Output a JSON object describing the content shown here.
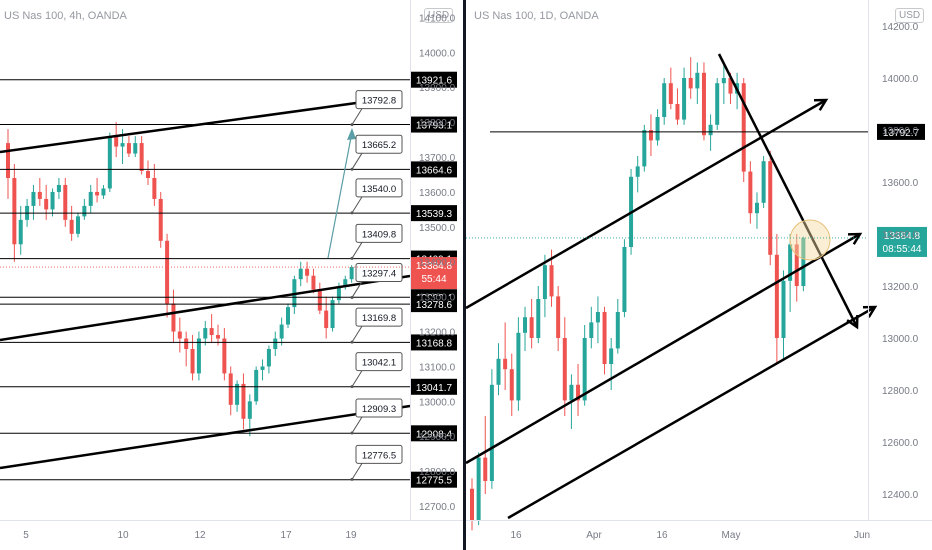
{
  "left": {
    "title": "US Nas 100, 4h, OANDA",
    "currency": "USD",
    "yticks": [
      12700.0,
      12800.0,
      12900.0,
      13000.0,
      13100.0,
      13200.0,
      13300.0,
      13400.0,
      13500.0,
      13600.0,
      13700.0,
      13800.0,
      13900.0,
      14000.0,
      14100.0
    ],
    "xticks": [
      "5",
      "10",
      "12",
      "17",
      "19"
    ],
    "hlines": [
      "13921.6",
      "13793.1",
      "13664.6",
      "13539.3",
      "13409.1",
      "13298.4",
      "13278.6",
      "13168.8",
      "13041.7",
      "12908.4",
      "12775.5"
    ],
    "notes": [
      "13792.8",
      "13665.2",
      "13540.0",
      "13409.8",
      "13297.4",
      "13169.8",
      "13042.1",
      "12909.3",
      "12776.5"
    ],
    "price": "13384.8",
    "countdown": "55:44",
    "colors": {
      "up": "#26a69a",
      "down": "#ef5350",
      "price_tag": "#ef5350"
    }
  },
  "right": {
    "title": "US Nas 100, 1D, OANDA",
    "currency": "USD",
    "yticks": [
      12400.0,
      12600.0,
      12800.0,
      13000.0,
      13200.0,
      13400.0,
      13600.0,
      13800.0,
      14000.0,
      14200.0
    ],
    "xticks": [
      "16",
      "Apr",
      "16",
      "May",
      "Jun"
    ],
    "hline": "13792.7",
    "price": "13384.8",
    "countdown": "08:55:44",
    "colors": {
      "up": "#26a69a",
      "down": "#ef5350",
      "price_tag": "#26a69a"
    }
  },
  "chart_data": [
    {
      "type": "candlestick",
      "title": "US Nas 100, 4h, OANDA",
      "ylim": [
        12660,
        14150
      ],
      "xticks": [
        "5",
        "10",
        "12",
        "17",
        "19"
      ],
      "candles_ohlc": [
        [
          13740,
          13780,
          13580,
          13640
        ],
        [
          13640,
          13680,
          13400,
          13450
        ],
        [
          13450,
          13560,
          13420,
          13520
        ],
        [
          13520,
          13580,
          13500,
          13560
        ],
        [
          13560,
          13620,
          13520,
          13600
        ],
        [
          13600,
          13640,
          13560,
          13580
        ],
        [
          13580,
          13620,
          13520,
          13550
        ],
        [
          13550,
          13610,
          13530,
          13600
        ],
        [
          13600,
          13640,
          13580,
          13620
        ],
        [
          13620,
          13640,
          13500,
          13520
        ],
        [
          13520,
          13560,
          13460,
          13480
        ],
        [
          13480,
          13540,
          13470,
          13530
        ],
        [
          13530,
          13580,
          13520,
          13560
        ],
        [
          13560,
          13620,
          13540,
          13600
        ],
        [
          13600,
          13640,
          13570,
          13590
        ],
        [
          13590,
          13620,
          13580,
          13610
        ],
        [
          13610,
          13770,
          13600,
          13760
        ],
        [
          13760,
          13800,
          13700,
          13730
        ],
        [
          13730,
          13780,
          13680,
          13740
        ],
        [
          13740,
          13760,
          13700,
          13710
        ],
        [
          13710,
          13760,
          13700,
          13740
        ],
        [
          13740,
          13760,
          13650,
          13660
        ],
        [
          13660,
          13690,
          13620,
          13640
        ],
        [
          13640,
          13680,
          13560,
          13580
        ],
        [
          13580,
          13600,
          13440,
          13460
        ],
        [
          13460,
          13480,
          13240,
          13280
        ],
        [
          13280,
          13320,
          13170,
          13200
        ],
        [
          13200,
          13240,
          13140,
          13180
        ],
        [
          13180,
          13200,
          13100,
          13150
        ],
        [
          13150,
          13190,
          13060,
          13080
        ],
        [
          13080,
          13200,
          13060,
          13180
        ],
        [
          13180,
          13230,
          13160,
          13210
        ],
        [
          13210,
          13250,
          13170,
          13190
        ],
        [
          13190,
          13220,
          13160,
          13180
        ],
        [
          13180,
          13210,
          13060,
          13080
        ],
        [
          13080,
          13100,
          12960,
          12990
        ],
        [
          12990,
          13060,
          12970,
          13050
        ],
        [
          13050,
          13080,
          12920,
          12950
        ],
        [
          12950,
          13020,
          12900,
          13000
        ],
        [
          13000,
          13100,
          12990,
          13090
        ],
        [
          13090,
          13120,
          13060,
          13100
        ],
        [
          13100,
          13160,
          13080,
          13150
        ],
        [
          13150,
          13200,
          13130,
          13180
        ],
        [
          13180,
          13240,
          13160,
          13220
        ],
        [
          13220,
          13280,
          13210,
          13270
        ],
        [
          13270,
          13360,
          13250,
          13350
        ],
        [
          13350,
          13400,
          13330,
          13380
        ],
        [
          13380,
          13400,
          13340,
          13360
        ],
        [
          13360,
          13380,
          13310,
          13320
        ],
        [
          13320,
          13340,
          13250,
          13260
        ],
        [
          13260,
          13300,
          13180,
          13210
        ],
        [
          13210,
          13300,
          13200,
          13290
        ],
        [
          13290,
          13340,
          13280,
          13330
        ],
        [
          13330,
          13360,
          13320,
          13350
        ],
        [
          13350,
          13390,
          13340,
          13385
        ]
      ],
      "horizontal_levels": [
        13921.6,
        13793.1,
        13664.6,
        13539.3,
        13409.1,
        13298.4,
        13278.6,
        13168.8,
        13041.7,
        12908.4,
        12775.5
      ],
      "price_notes": [
        13792.8,
        13665.2,
        13540.0,
        13409.8,
        13297.4,
        13169.8,
        13042.1,
        12909.3,
        12776.5
      ],
      "last_price": 13384.8
    },
    {
      "type": "candlestick",
      "title": "US Nas 100, 1D, OANDA",
      "ylim": [
        12300,
        14300
      ],
      "xticks": [
        "16",
        "Apr",
        "16",
        "May",
        "Jun"
      ],
      "candles_ohlc": [
        [
          12420,
          12460,
          12260,
          12300
        ],
        [
          12300,
          12560,
          12280,
          12540
        ],
        [
          12540,
          12700,
          12400,
          12450
        ],
        [
          12450,
          12880,
          12420,
          12820
        ],
        [
          12820,
          12980,
          12780,
          12920
        ],
        [
          12920,
          13060,
          12800,
          12880
        ],
        [
          12880,
          12940,
          12700,
          12760
        ],
        [
          12760,
          13080,
          12720,
          13020
        ],
        [
          13020,
          13120,
          12950,
          13080
        ],
        [
          13080,
          13150,
          12960,
          13000
        ],
        [
          13000,
          13200,
          12980,
          13150
        ],
        [
          13150,
          13320,
          13080,
          13280
        ],
        [
          13280,
          13340,
          13120,
          13160
        ],
        [
          13160,
          13200,
          12950,
          13000
        ],
        [
          13000,
          13080,
          12700,
          12760
        ],
        [
          12760,
          12860,
          12650,
          12820
        ],
        [
          12820,
          12900,
          12700,
          12760
        ],
        [
          12760,
          13050,
          12740,
          13000
        ],
        [
          13000,
          13120,
          12960,
          13060
        ],
        [
          13060,
          13160,
          12980,
          13100
        ],
        [
          13100,
          13120,
          12860,
          12900
        ],
        [
          12900,
          13000,
          12800,
          12960
        ],
        [
          12960,
          13150,
          12940,
          13100
        ],
        [
          13100,
          13380,
          13080,
          13350
        ],
        [
          13350,
          13650,
          13320,
          13620
        ],
        [
          13620,
          13700,
          13560,
          13660
        ],
        [
          13660,
          13820,
          13640,
          13800
        ],
        [
          13800,
          13860,
          13700,
          13760
        ],
        [
          13760,
          13880,
          13740,
          13850
        ],
        [
          13850,
          14000,
          13820,
          13980
        ],
        [
          13980,
          14040,
          13880,
          13900
        ],
        [
          13900,
          13960,
          13820,
          13840
        ],
        [
          13840,
          14040,
          13820,
          14000
        ],
        [
          14000,
          14080,
          13920,
          13960
        ],
        [
          13960,
          14060,
          13900,
          14020
        ],
        [
          14020,
          14060,
          13760,
          13780
        ],
        [
          13780,
          13860,
          13720,
          13820
        ],
        [
          13820,
          14000,
          13800,
          13980
        ],
        [
          13980,
          14060,
          13900,
          14000
        ],
        [
          14000,
          14020,
          13900,
          13940
        ],
        [
          13940,
          14020,
          13880,
          13980
        ],
        [
          13980,
          14000,
          13600,
          13640
        ],
        [
          13640,
          13680,
          13440,
          13480
        ],
        [
          13480,
          13560,
          13420,
          13520
        ],
        [
          13520,
          13700,
          13500,
          13680
        ],
        [
          13680,
          13720,
          13280,
          13320
        ],
        [
          13320,
          13400,
          12900,
          13000
        ],
        [
          13000,
          13260,
          12920,
          13220
        ],
        [
          13220,
          13400,
          13100,
          13360
        ],
        [
          13360,
          13400,
          13140,
          13200
        ],
        [
          13200,
          13390,
          13180,
          13385
        ]
      ],
      "horizontal_levels": [
        13792.7
      ],
      "last_price": 13384.8
    }
  ]
}
